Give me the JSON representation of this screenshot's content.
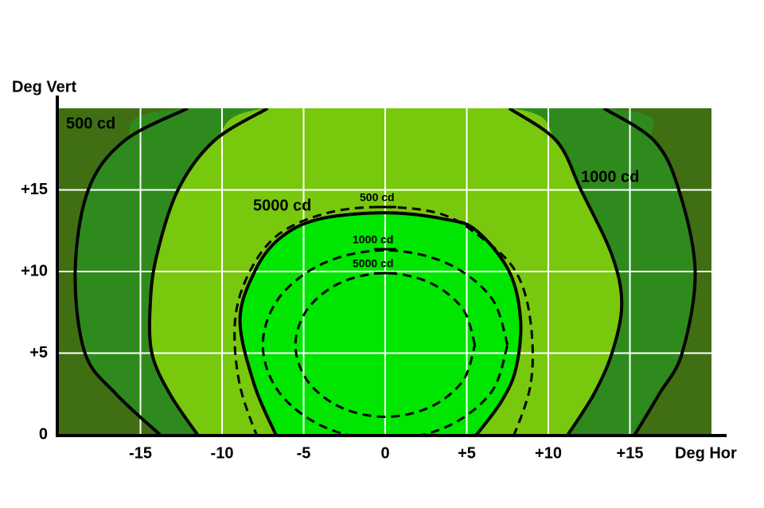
{
  "chart_data": {
    "type": "contour",
    "x_label": "Deg Hor",
    "y_label": "Deg Vert",
    "xlim": [
      -20,
      20
    ],
    "ylim": [
      0,
      20
    ],
    "xticks": [
      -15,
      -10,
      -5,
      0,
      {
        "value": 5,
        "label": "+5"
      },
      {
        "value": 10,
        "label": "+10"
      },
      {
        "value": 15,
        "label": "+15"
      }
    ],
    "yticks": [
      0,
      {
        "value": 5,
        "label": "+5"
      },
      {
        "value": 10,
        "label": "+10"
      },
      {
        "value": 15,
        "label": "+15"
      }
    ],
    "grid": true,
    "background": "#3f6f12",
    "series": [
      {
        "name": "500 cd",
        "color": "#2e8a1c",
        "dashed": false,
        "x": [
          -13.8,
          -16.5,
          -18.4,
          -19,
          -18.2,
          -16,
          -12.1,
          null,
          13.4,
          16.5,
          18,
          19,
          18.2,
          16.8,
          15.3
        ],
        "y": [
          0,
          2.5,
          5,
          10,
          15,
          18,
          20,
          null,
          20,
          18,
          15,
          10,
          5,
          2.5,
          0
        ]
      },
      {
        "name": "1000 cd",
        "color": "#78c80e",
        "dashed": false,
        "x": [
          -11.5,
          -13.2,
          -14.3,
          -14.4,
          -14,
          -12.7,
          -10.5,
          -7.2,
          null,
          7.6,
          10.5,
          12,
          13.9,
          14.5,
          13.9,
          12.8,
          11.2
        ],
        "y": [
          0,
          2.5,
          5,
          8,
          11,
          15,
          18,
          20,
          null,
          20,
          18,
          15,
          11,
          8,
          5,
          2.5,
          0
        ]
      },
      {
        "name": "5000 cd",
        "color": "#00e600",
        "dashed": false,
        "x": [
          -6.7,
          -8,
          -8.9,
          -8,
          -6.5,
          -4.1,
          0,
          3.7,
          5.6,
          7.6,
          8.3,
          8,
          7.1,
          5.6
        ],
        "y": [
          0,
          3,
          7,
          10,
          12,
          13.2,
          13.6,
          13.2,
          12.5,
          10,
          7,
          4,
          2,
          0
        ]
      },
      {
        "name": "500 cd",
        "color": "#000000",
        "dashed": true,
        "x": [
          -7.5,
          -8.9,
          -9.2,
          -8.3,
          -6.5,
          -3.5,
          0,
          3.5,
          6,
          8,
          8.9,
          8.9,
          7.5
        ],
        "y": [
          -1,
          3,
          7,
          10,
          12.3,
          13.6,
          13.95,
          13.5,
          12,
          10,
          7,
          3,
          -1
        ]
      },
      {
        "name": "1000 cd",
        "color": "#000000",
        "dashed": true,
        "x": [
          7.5,
          6.5,
          3.75,
          0,
          -3.75,
          -6.5,
          -7.5,
          -6.5,
          -3.75,
          0,
          3.75,
          6.5,
          7.5
        ],
        "y": [
          5.5,
          8.4,
          10.52,
          11.3,
          10.52,
          8.4,
          5.5,
          2.6,
          0.48,
          -0.3,
          0.48,
          2.6,
          5.5
        ]
      },
      {
        "name": "5000 cd",
        "color": "#000000",
        "dashed": true,
        "x": [
          5.5,
          4.76,
          2.75,
          0,
          -2.75,
          -4.76,
          -5.5,
          -4.76,
          -2.75,
          0,
          2.75,
          4.76,
          5.5
        ],
        "y": [
          5.5,
          7.7,
          9.31,
          9.9,
          9.31,
          7.7,
          5.5,
          3.3,
          1.69,
          1.1,
          1.69,
          3.3,
          5.5
        ]
      }
    ]
  }
}
